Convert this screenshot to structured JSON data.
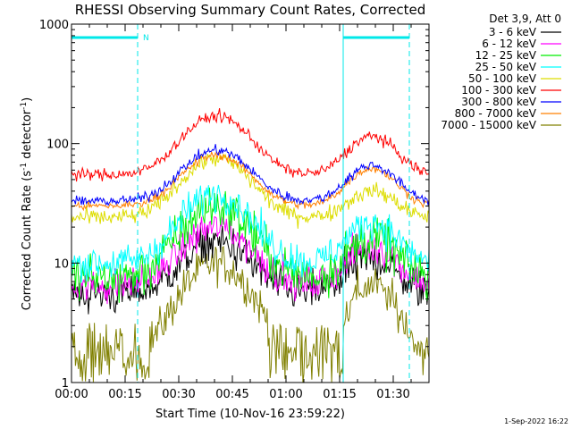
{
  "chart_data": {
    "type": "line",
    "title": "RHESSI Observing Summary Count Rates, Corrected",
    "xlabel": "Start Time (10-Nov-16 23:59:22)",
    "ylabel_main": "Corrected Count Rate (s",
    "ylabel_sup1": "-1",
    "ylabel_mid": " detector",
    "ylabel_sup2": "-1",
    "ylabel_end": ")",
    "yscale": "log",
    "ylim": [
      1,
      1000
    ],
    "xlim_minutes": [
      0,
      100
    ],
    "x_ticks": [
      "00:00",
      "00:15",
      "00:30",
      "00:45",
      "01:00",
      "01:15",
      "01:30"
    ],
    "y_ticks": [
      "1",
      "10",
      "100",
      "1000"
    ],
    "legend_title": "Det 3,9, Att 0",
    "legend_position": "right",
    "footer_date": "1-Sep-2022 16:22",
    "night_marker": "N",
    "night_intervals_minutes": [
      [
        0,
        18.5
      ],
      [
        76,
        94.5
      ]
    ],
    "series": [
      {
        "name": "3 - 6 keV",
        "color": "#000000",
        "base": 5.5,
        "peak1": 15,
        "peak2": 11,
        "noise": 0.12
      },
      {
        "name": "6 - 12 keV",
        "color": "#ff00ff",
        "base": 6.5,
        "peak1": 20,
        "peak2": 14,
        "noise": 0.1
      },
      {
        "name": "12 - 25 keV",
        "color": "#00ee00",
        "base": 7.5,
        "peak1": 30,
        "peak2": 16,
        "noise": 0.14
      },
      {
        "name": "25 - 50 keV",
        "color": "#00ffff",
        "base": 10,
        "peak1": 38,
        "peak2": 22,
        "noise": 0.1
      },
      {
        "name": "50 - 100 keV",
        "color": "#dddd00",
        "base": 24,
        "peak1": 75,
        "peak2": 40,
        "noise": 0.05
      },
      {
        "name": "100 - 300 keV",
        "color": "#ff0000",
        "base": 55,
        "peak1": 170,
        "peak2": 115,
        "noise": 0.035
      },
      {
        "name": "300 - 800 keV",
        "color": "#0000ff",
        "base": 33,
        "peak1": 88,
        "peak2": 66,
        "noise": 0.03
      },
      {
        "name": "800 - 7000 keV",
        "color": "#ff8000",
        "base": 30,
        "peak1": 80,
        "peak2": 62,
        "noise": 0.025
      },
      {
        "name": "7000 - 15000 keV",
        "color": "#808000",
        "base": 1.6,
        "peak1": 10,
        "peak2": 6.5,
        "noise": 0.12
      }
    ]
  }
}
